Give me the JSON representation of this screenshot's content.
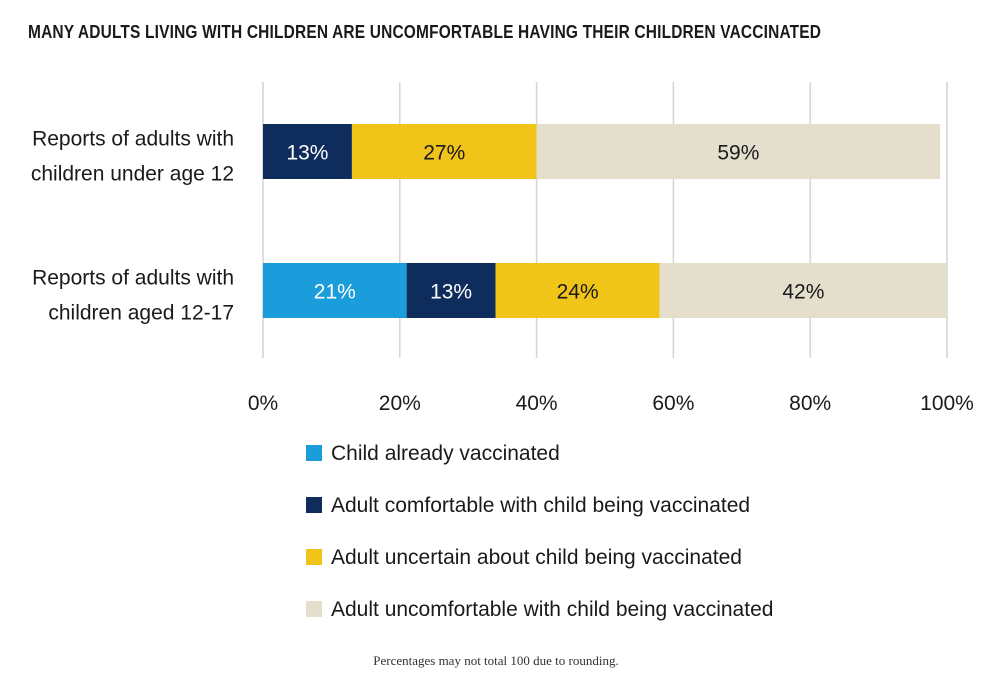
{
  "chart_data": {
    "type": "bar",
    "orientation": "horizontal",
    "stacked": true,
    "title": "MANY ADULTS LIVING WITH CHILDREN ARE UNCOMFORTABLE HAVING THEIR CHILDREN VACCINATED",
    "xlim": [
      0,
      100
    ],
    "x_ticks": [
      "0%",
      "20%",
      "40%",
      "60%",
      "80%",
      "100%"
    ],
    "grid": true,
    "legend_position": "bottom",
    "categories": [
      [
        "Reports of adults with",
        "children under age 12"
      ],
      [
        "Reports of adults with",
        "children aged 12-17"
      ]
    ],
    "series": [
      {
        "name": "Child already vaccinated",
        "color": "#1b9ddb",
        "values": [
          0,
          21
        ]
      },
      {
        "name": "Adult comfortable with child being vaccinated",
        "color": "#0f2d5c",
        "values": [
          13,
          13
        ]
      },
      {
        "name": "Adult uncertain about child being vaccinated",
        "color": "#f0c419",
        "values": [
          27,
          24
        ]
      },
      {
        "name": "Adult uncomfortable with child being vaccinated",
        "color": "#e4dfcd",
        "values": [
          59,
          42
        ]
      }
    ],
    "label_colors": [
      "#ffffff",
      "#ffffff",
      "#1a1a1a",
      "#1a1a1a"
    ],
    "footnote": "Percentages may not total 100 due to rounding."
  }
}
